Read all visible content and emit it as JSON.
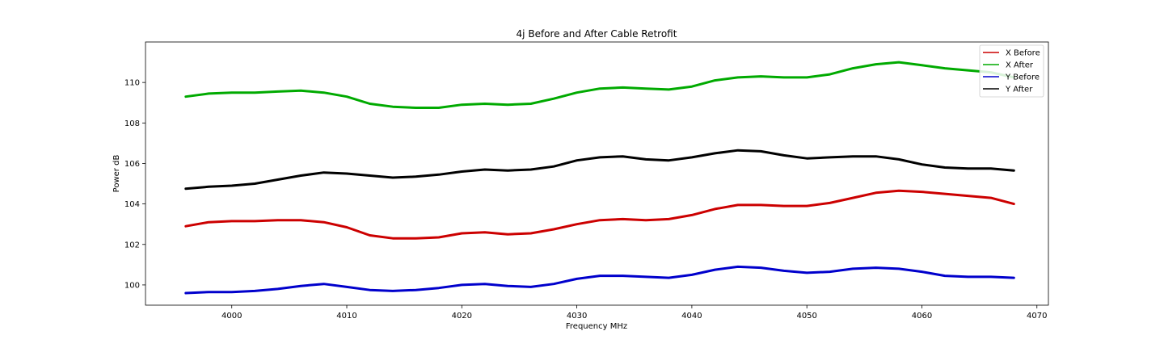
{
  "chart_data": {
    "type": "line",
    "title": "4j Before and After Cable Retrofit",
    "xlabel": "Frequency MHz",
    "ylabel": "Power dB",
    "xlim": [
      3992.5,
      4071.0
    ],
    "ylim": [
      99.0,
      112.0
    ],
    "xticks": [
      4000,
      4010,
      4020,
      4030,
      4040,
      4050,
      4060,
      4070
    ],
    "yticks": [
      100,
      102,
      104,
      106,
      108,
      110
    ],
    "grid": false,
    "legend_position": "top-right",
    "x": [
      3996,
      3998,
      4000,
      4002,
      4004,
      4006,
      4008,
      4010,
      4012,
      4014,
      4016,
      4018,
      4020,
      4022,
      4024,
      4026,
      4028,
      4030,
      4032,
      4034,
      4036,
      4038,
      4040,
      4042,
      4044,
      4046,
      4048,
      4050,
      4052,
      4054,
      4056,
      4058,
      4060,
      4062,
      4064,
      4066,
      4068
    ],
    "series": [
      {
        "name": "X Before",
        "color": "#cc0000",
        "values": [
          102.9,
          103.1,
          103.15,
          103.15,
          103.2,
          103.2,
          103.1,
          102.85,
          102.45,
          102.3,
          102.3,
          102.35,
          102.55,
          102.6,
          102.5,
          102.55,
          102.75,
          103.0,
          103.2,
          103.25,
          103.2,
          103.25,
          103.45,
          103.75,
          103.95,
          103.95,
          103.9,
          103.9,
          104.05,
          104.3,
          104.55,
          104.65,
          104.6,
          104.5,
          104.4,
          104.3,
          104.0
        ]
      },
      {
        "name": "X After",
        "color": "#00aa00",
        "values": [
          109.3,
          109.45,
          109.5,
          109.5,
          109.55,
          109.6,
          109.5,
          109.3,
          108.95,
          108.8,
          108.75,
          108.75,
          108.9,
          108.95,
          108.9,
          108.95,
          109.2,
          109.5,
          109.7,
          109.75,
          109.7,
          109.65,
          109.8,
          110.1,
          110.25,
          110.3,
          110.25,
          110.25,
          110.4,
          110.7,
          110.9,
          111.0,
          110.85,
          110.7,
          110.6,
          110.5,
          110.25
        ]
      },
      {
        "name": "Y Before",
        "color": "#0000cc",
        "values": [
          99.6,
          99.65,
          99.65,
          99.7,
          99.8,
          99.95,
          100.05,
          99.9,
          99.75,
          99.7,
          99.75,
          99.85,
          100.0,
          100.05,
          99.95,
          99.9,
          100.05,
          100.3,
          100.45,
          100.45,
          100.4,
          100.35,
          100.5,
          100.75,
          100.9,
          100.85,
          100.7,
          100.6,
          100.65,
          100.8,
          100.85,
          100.8,
          100.65,
          100.45,
          100.4,
          100.4,
          100.35
        ]
      },
      {
        "name": "Y After",
        "color": "#000000",
        "values": [
          104.75,
          104.85,
          104.9,
          105.0,
          105.2,
          105.4,
          105.55,
          105.5,
          105.4,
          105.3,
          105.35,
          105.45,
          105.6,
          105.7,
          105.65,
          105.7,
          105.85,
          106.15,
          106.3,
          106.35,
          106.2,
          106.15,
          106.3,
          106.5,
          106.65,
          106.6,
          106.4,
          106.25,
          106.3,
          106.35,
          106.35,
          106.2,
          105.95,
          105.8,
          105.75,
          105.75,
          105.65
        ]
      }
    ]
  }
}
